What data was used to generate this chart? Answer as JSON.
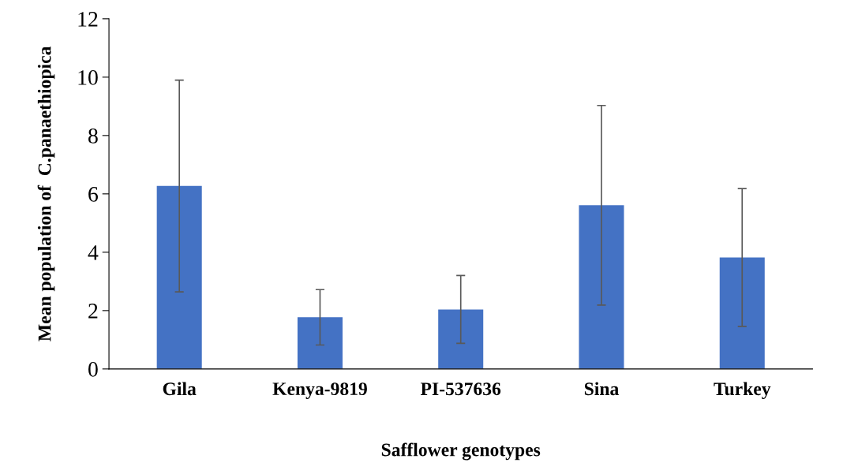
{
  "chart_data": {
    "type": "bar",
    "xlabel": "Safflower genotypes",
    "ylabel": "Mean population of  C.panaethiopica",
    "categories": [
      "Gila",
      "Kenya-9819",
      "PI-537636",
      "Sina",
      "Turkey"
    ],
    "values": [
      6.27,
      1.77,
      2.04,
      5.61,
      3.82
    ],
    "errors": [
      3.63,
      0.95,
      1.16,
      3.42,
      2.36
    ],
    "color": "#4472c4",
    "ylim": [
      0,
      12
    ],
    "yticks": [
      0,
      2,
      4,
      6,
      8,
      10,
      12
    ],
    "grid": false
  }
}
